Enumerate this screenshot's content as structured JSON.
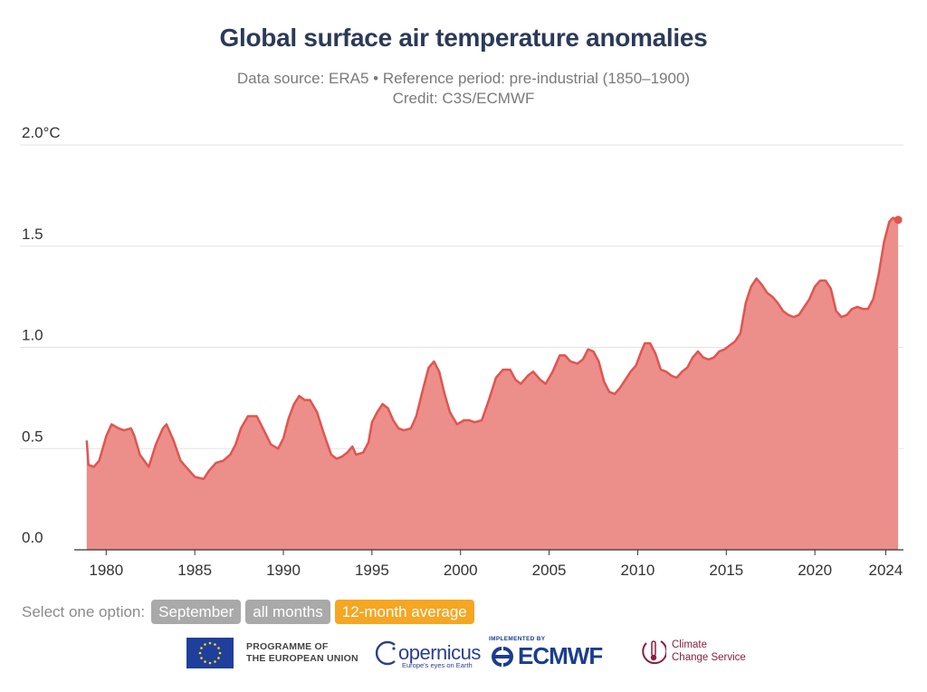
{
  "title": "Global surface air temperature anomalies",
  "subtitle_line1": "Data source: ERA5 • Reference period: pre-industrial (1850–1900)",
  "subtitle_line2": "Credit: C3S/ECMWF",
  "controls": {
    "label": "Select one option:",
    "options": [
      "September",
      "all months",
      "12-month average"
    ],
    "selected": "12-month average"
  },
  "logos": {
    "eu_line1": "PROGRAMME OF",
    "eu_line2": "THE EUROPEAN UNION",
    "copernicus": "opernicus",
    "copernicus_tagline": "Europe's eyes on Earth",
    "ecmwf_top": "IMPLEMENTED BY",
    "ecmwf": "ECMWF",
    "c3s_line1": "Climate",
    "c3s_line2": "Change Service"
  },
  "colors": {
    "line": "#e05550",
    "fill": "#ec8e89",
    "active_button": "#f5a623",
    "inactive_button": "#a9a9a9",
    "title": "#2c3a59"
  },
  "chart_data": {
    "type": "area",
    "title": "Global surface air temperature anomalies",
    "yunit": "°C",
    "ylim": [
      0,
      2.0
    ],
    "yticks": [
      0.0,
      0.5,
      1.0,
      1.5,
      2.0
    ],
    "ytick_labels": [
      "0.0",
      "0.5",
      "1.0",
      "1.5",
      "2.0°C"
    ],
    "xticks": [
      1980,
      1985,
      1990,
      1995,
      2000,
      2005,
      2010,
      2015,
      2020,
      2024
    ],
    "xtick_labels": [
      "1980",
      "1985",
      "1990",
      "1995",
      "2000",
      "2005",
      "2010",
      "2015",
      "2020",
      "2024"
    ],
    "grid": true,
    "series": [
      {
        "values_year_anomaly": [
          [
            1978.9,
            0.54
          ],
          [
            1979.0,
            0.42
          ],
          [
            1979.3,
            0.41
          ],
          [
            1979.6,
            0.44
          ],
          [
            1980.0,
            0.56
          ],
          [
            1980.3,
            0.62
          ],
          [
            1980.7,
            0.6
          ],
          [
            1981.0,
            0.59
          ],
          [
            1981.4,
            0.6
          ],
          [
            1981.6,
            0.56
          ],
          [
            1981.9,
            0.47
          ],
          [
            1982.4,
            0.41
          ],
          [
            1982.8,
            0.52
          ],
          [
            1983.2,
            0.6
          ],
          [
            1983.4,
            0.62
          ],
          [
            1983.8,
            0.54
          ],
          [
            1984.2,
            0.44
          ],
          [
            1984.6,
            0.4
          ],
          [
            1985.0,
            0.36
          ],
          [
            1985.5,
            0.35
          ],
          [
            1985.8,
            0.39
          ],
          [
            1986.2,
            0.43
          ],
          [
            1986.6,
            0.44
          ],
          [
            1987.0,
            0.47
          ],
          [
            1987.3,
            0.52
          ],
          [
            1987.6,
            0.6
          ],
          [
            1988.0,
            0.66
          ],
          [
            1988.5,
            0.66
          ],
          [
            1988.9,
            0.59
          ],
          [
            1989.3,
            0.52
          ],
          [
            1989.7,
            0.5
          ],
          [
            1990.0,
            0.55
          ],
          [
            1990.3,
            0.65
          ],
          [
            1990.6,
            0.72
          ],
          [
            1990.9,
            0.76
          ],
          [
            1991.2,
            0.74
          ],
          [
            1991.5,
            0.74
          ],
          [
            1991.9,
            0.68
          ],
          [
            1992.3,
            0.57
          ],
          [
            1992.7,
            0.47
          ],
          [
            1993.0,
            0.45
          ],
          [
            1993.3,
            0.46
          ],
          [
            1993.6,
            0.48
          ],
          [
            1993.9,
            0.51
          ],
          [
            1994.1,
            0.47
          ],
          [
            1994.5,
            0.48
          ],
          [
            1994.8,
            0.53
          ],
          [
            1995.0,
            0.63
          ],
          [
            1995.3,
            0.68
          ],
          [
            1995.6,
            0.72
          ],
          [
            1995.9,
            0.7
          ],
          [
            1996.2,
            0.64
          ],
          [
            1996.5,
            0.6
          ],
          [
            1996.8,
            0.59
          ],
          [
            1997.2,
            0.6
          ],
          [
            1997.5,
            0.66
          ],
          [
            1997.9,
            0.8
          ],
          [
            1998.2,
            0.9
          ],
          [
            1998.5,
            0.93
          ],
          [
            1998.8,
            0.88
          ],
          [
            1999.1,
            0.77
          ],
          [
            1999.4,
            0.68
          ],
          [
            1999.8,
            0.62
          ],
          [
            2000.2,
            0.64
          ],
          [
            2000.5,
            0.64
          ],
          [
            2000.8,
            0.63
          ],
          [
            2001.2,
            0.64
          ],
          [
            2001.6,
            0.74
          ],
          [
            2002.0,
            0.85
          ],
          [
            2002.4,
            0.89
          ],
          [
            2002.8,
            0.89
          ],
          [
            2003.1,
            0.84
          ],
          [
            2003.4,
            0.82
          ],
          [
            2003.8,
            0.86
          ],
          [
            2004.1,
            0.88
          ],
          [
            2004.5,
            0.84
          ],
          [
            2004.8,
            0.82
          ],
          [
            2005.2,
            0.88
          ],
          [
            2005.6,
            0.96
          ],
          [
            2005.9,
            0.96
          ],
          [
            2006.2,
            0.93
          ],
          [
            2006.6,
            0.92
          ],
          [
            2006.9,
            0.94
          ],
          [
            2007.2,
            0.99
          ],
          [
            2007.5,
            0.98
          ],
          [
            2007.8,
            0.93
          ],
          [
            2008.1,
            0.83
          ],
          [
            2008.4,
            0.78
          ],
          [
            2008.7,
            0.77
          ],
          [
            2009.0,
            0.8
          ],
          [
            2009.3,
            0.84
          ],
          [
            2009.6,
            0.88
          ],
          [
            2009.9,
            0.91
          ],
          [
            2010.2,
            0.98
          ],
          [
            2010.4,
            1.02
          ],
          [
            2010.7,
            1.02
          ],
          [
            2011.0,
            0.97
          ],
          [
            2011.3,
            0.89
          ],
          [
            2011.6,
            0.88
          ],
          [
            2011.9,
            0.86
          ],
          [
            2012.2,
            0.85
          ],
          [
            2012.5,
            0.88
          ],
          [
            2012.8,
            0.9
          ],
          [
            2013.1,
            0.95
          ],
          [
            2013.4,
            0.98
          ],
          [
            2013.7,
            0.95
          ],
          [
            2014.0,
            0.94
          ],
          [
            2014.3,
            0.95
          ],
          [
            2014.6,
            0.98
          ],
          [
            2014.9,
            0.99
          ],
          [
            2015.2,
            1.01
          ],
          [
            2015.5,
            1.03
          ],
          [
            2015.8,
            1.07
          ],
          [
            2016.1,
            1.22
          ],
          [
            2016.4,
            1.3
          ],
          [
            2016.7,
            1.34
          ],
          [
            2017.0,
            1.31
          ],
          [
            2017.3,
            1.27
          ],
          [
            2017.6,
            1.25
          ],
          [
            2017.9,
            1.22
          ],
          [
            2018.2,
            1.18
          ],
          [
            2018.5,
            1.16
          ],
          [
            2018.8,
            1.15
          ],
          [
            2019.1,
            1.16
          ],
          [
            2019.4,
            1.2
          ],
          [
            2019.7,
            1.24
          ],
          [
            2020.0,
            1.3
          ],
          [
            2020.3,
            1.33
          ],
          [
            2020.6,
            1.33
          ],
          [
            2020.9,
            1.29
          ],
          [
            2021.2,
            1.18
          ],
          [
            2021.5,
            1.15
          ],
          [
            2021.8,
            1.16
          ],
          [
            2022.1,
            1.19
          ],
          [
            2022.4,
            1.2
          ],
          [
            2022.7,
            1.19
          ],
          [
            2023.0,
            1.19
          ],
          [
            2023.3,
            1.24
          ],
          [
            2023.6,
            1.36
          ],
          [
            2023.9,
            1.52
          ],
          [
            2024.2,
            1.62
          ],
          [
            2024.4,
            1.64
          ],
          [
            2024.7,
            1.63
          ]
        ]
      }
    ]
  }
}
